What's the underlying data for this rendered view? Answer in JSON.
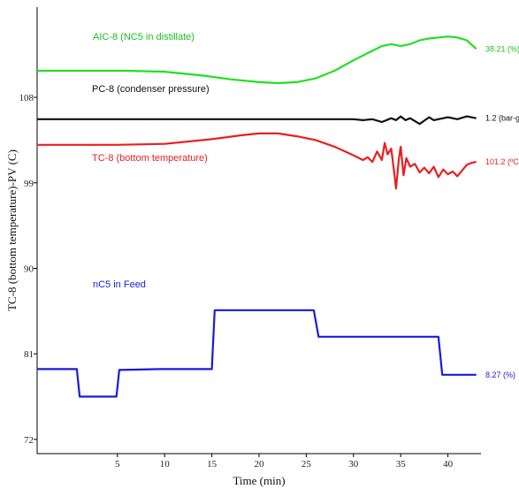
{
  "chart_data": {
    "type": "line",
    "title": "",
    "xlabel": "Time (min)",
    "ylabel": "TC-8 (bottom temperature)-PV (C)",
    "xlim": [
      -3.5,
      43.5
    ],
    "ylim": [
      70.5,
      117.5
    ],
    "x_ticks": [
      5,
      10,
      15,
      20,
      25,
      30,
      35,
      40
    ],
    "y_ticks": [
      72,
      81,
      90,
      99,
      108
    ],
    "grid": false,
    "series": [
      {
        "name": "AIC-8 (NC5 in distillate)",
        "end_label": "38.21 (%)",
        "color": "#22e022",
        "x": [
          -3.5,
          2,
          6,
          10,
          14,
          17,
          20,
          22,
          24,
          26,
          28,
          30,
          32,
          33,
          34,
          35,
          36,
          37,
          38,
          40,
          41,
          42,
          43
        ],
        "y": [
          110.8,
          110.8,
          110.8,
          110.7,
          110.3,
          109.9,
          109.6,
          109.5,
          109.6,
          110.0,
          110.8,
          111.9,
          112.9,
          113.4,
          113.6,
          113.4,
          113.6,
          114.0,
          114.2,
          114.4,
          114.3,
          114.0,
          113.1
        ]
      },
      {
        "name": "PC-8 (condenser pressure)",
        "end_label": "1.2 (bar-g)",
        "color": "#111111",
        "x": [
          -3.5,
          5,
          10,
          15,
          20,
          25,
          30,
          31,
          32,
          33,
          34,
          34.5,
          35,
          35.5,
          36,
          37,
          38,
          38.5,
          39,
          40,
          41,
          42,
          43
        ],
        "y": [
          105.7,
          105.7,
          105.7,
          105.7,
          105.7,
          105.7,
          105.7,
          105.6,
          105.7,
          105.4,
          105.8,
          105.6,
          106.0,
          105.6,
          105.8,
          105.2,
          105.9,
          105.6,
          105.7,
          105.9,
          105.7,
          106.0,
          105.8
        ]
      },
      {
        "name": "TC-8 (bottom temperature)",
        "end_label": "101.2 (ºC)",
        "color": "#e82020",
        "x": [
          -3.5,
          5,
          10,
          15,
          18,
          20,
          22,
          24,
          26,
          28,
          30,
          31,
          31.5,
          32,
          32.5,
          33,
          33.3,
          33.6,
          34,
          34.3,
          34.5,
          34.8,
          35,
          35.3,
          35.6,
          36,
          36.5,
          37,
          37.5,
          38,
          38.5,
          39,
          39.5,
          40,
          40.5,
          41,
          41.5,
          42,
          42.5,
          43
        ],
        "y": [
          103.0,
          103.0,
          103.1,
          103.6,
          104.0,
          104.2,
          104.2,
          103.9,
          103.5,
          102.8,
          101.9,
          101.4,
          101.7,
          101.2,
          102.3,
          101.4,
          103.2,
          102.0,
          102.6,
          100.2,
          98.4,
          101.5,
          102.8,
          99.8,
          101.6,
          100.7,
          101.0,
          100.1,
          100.6,
          100.0,
          100.7,
          99.6,
          100.4,
          99.9,
          100.2,
          99.7,
          100.3,
          100.9,
          101.1,
          101.2
        ]
      },
      {
        "name": "nC5 in Feed",
        "end_label": "8.27 (%)",
        "color": "#1a1adc",
        "x": [
          -3.5,
          0.7,
          1,
          4.9,
          5.2,
          9.5,
          15.0,
          15.3,
          25.8,
          26.3,
          39.0,
          39.4,
          43
        ],
        "y": [
          79.4,
          79.4,
          76.5,
          76.5,
          79.3,
          79.4,
          79.4,
          85.6,
          85.6,
          82.8,
          82.8,
          78.8,
          78.8
        ]
      }
    ]
  }
}
